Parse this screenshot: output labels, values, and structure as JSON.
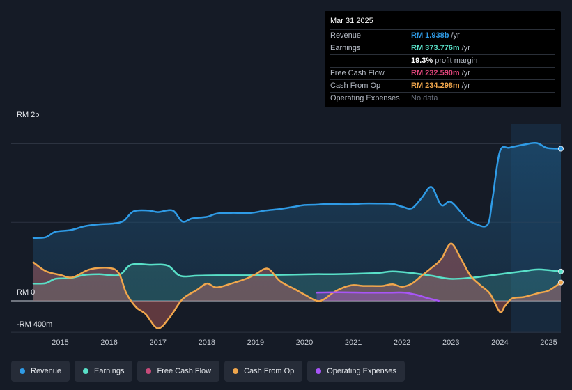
{
  "tooltip": {
    "date": "Mar 31 2025",
    "rows": [
      {
        "label": "Revenue",
        "value": "RM 1.938b",
        "unit": "/yr",
        "color": "#2f9be6"
      },
      {
        "label": "Earnings",
        "value": "RM 373.776m",
        "unit": "/yr",
        "color": "#59e0c8"
      },
      {
        "label": "",
        "value": "19.3%",
        "unit": "profit margin",
        "color": "#ffffff"
      },
      {
        "label": "Free Cash Flow",
        "value": "RM 232.590m",
        "unit": "/yr",
        "color": "#e0457b"
      },
      {
        "label": "Cash From Op",
        "value": "RM 234.298m",
        "unit": "/yr",
        "color": "#f0a64c"
      },
      {
        "label": "Operating Expenses",
        "value": "No data",
        "unit": "",
        "color": "#6b7280"
      }
    ]
  },
  "legend": [
    {
      "label": "Revenue",
      "color": "#2f9be6"
    },
    {
      "label": "Earnings",
      "color": "#59e0c8"
    },
    {
      "label": "Free Cash Flow",
      "color": "#c84b7a"
    },
    {
      "label": "Cash From Op",
      "color": "#f0a64c"
    },
    {
      "label": "Operating Expenses",
      "color": "#a855f7"
    }
  ],
  "chart_data": {
    "type": "line",
    "y_axis_labels": {
      "top": "RM 2b",
      "zero": "RM 0",
      "bottom": "-RM 400m"
    },
    "ylim": [
      -400,
      2200
    ],
    "xlim": [
      2014.45,
      2025.25
    ],
    "x_ticks": [
      "2015",
      "2016",
      "2017",
      "2018",
      "2019",
      "2020",
      "2021",
      "2022",
      "2023",
      "2024",
      "2025"
    ],
    "series": [
      {
        "name": "Revenue",
        "unit": "RM m",
        "color": "#2f9be6",
        "x": [
          2014.45,
          2014.7,
          2014.9,
          2015.2,
          2015.5,
          2015.8,
          2016.1,
          2016.3,
          2016.5,
          2016.8,
          2017.0,
          2017.3,
          2017.5,
          2017.7,
          2018.0,
          2018.2,
          2018.5,
          2018.9,
          2019.2,
          2019.5,
          2019.8,
          2020.0,
          2020.25,
          2020.5,
          2020.7,
          2021.0,
          2021.2,
          2021.5,
          2021.8,
          2022.0,
          2022.2,
          2022.4,
          2022.6,
          2022.8,
          2023.0,
          2023.3,
          2023.5,
          2023.75,
          2023.85,
          2024.0,
          2024.2,
          2024.5,
          2024.75,
          2024.95,
          2025.1,
          2025.25
        ],
        "values": [
          800,
          810,
          880,
          900,
          950,
          975,
          985,
          1020,
          1140,
          1150,
          1130,
          1150,
          1010,
          1050,
          1070,
          1110,
          1120,
          1120,
          1150,
          1170,
          1200,
          1220,
          1225,
          1235,
          1230,
          1230,
          1240,
          1240,
          1235,
          1200,
          1180,
          1310,
          1450,
          1220,
          1260,
          1060,
          980,
          970,
          1300,
          1900,
          1950,
          1990,
          2010,
          1950,
          1940,
          1938
        ]
      },
      {
        "name": "Earnings",
        "unit": "RM m",
        "color": "#59e0c8",
        "x": [
          2014.45,
          2014.7,
          2014.9,
          2015.2,
          2015.5,
          2015.8,
          2016.2,
          2016.45,
          2016.85,
          2017.2,
          2017.45,
          2017.8,
          2018.2,
          2018.8,
          2019.3,
          2019.8,
          2020.2,
          2020.6,
          2021.0,
          2021.5,
          2021.8,
          2022.2,
          2022.6,
          2023.0,
          2023.5,
          2024.0,
          2024.5,
          2024.8,
          2025.25
        ],
        "values": [
          220,
          225,
          280,
          290,
          330,
          340,
          330,
          460,
          460,
          450,
          320,
          320,
          325,
          325,
          330,
          335,
          340,
          340,
          345,
          355,
          375,
          355,
          320,
          280,
          300,
          340,
          380,
          400,
          374
        ]
      },
      {
        "name": "Free Cash Flow",
        "unit": "RM m",
        "color": "#c84b7a",
        "x": [
          2014.45,
          2014.7,
          2015.0,
          2015.25,
          2015.6,
          2016.0,
          2016.2,
          2016.35,
          2016.55,
          2016.75,
          2017.0,
          2017.25,
          2017.5,
          2017.8,
          2018.0,
          2018.2,
          2018.5,
          2018.8,
          2019.0,
          2019.25,
          2019.5,
          2019.8,
          2020.0,
          2020.25,
          2020.4,
          2020.6,
          2020.8,
          2021.0,
          2021.2,
          2021.4,
          2021.6,
          2021.8,
          2022.0,
          2022.2,
          2022.4,
          2022.6,
          2022.8,
          2023.0,
          2023.2,
          2023.4,
          2023.6,
          2023.8,
          2024.0,
          2024.1,
          2024.25,
          2024.5,
          2024.8,
          2025.0,
          2025.25
        ],
        "values": [
          490,
          380,
          330,
          300,
          400,
          420,
          350,
          100,
          -80,
          -170,
          -350,
          -200,
          20,
          140,
          220,
          170,
          220,
          280,
          340,
          410,
          250,
          150,
          80,
          0,
          20,
          110,
          170,
          200,
          190,
          190,
          190,
          210,
          180,
          220,
          320,
          420,
          530,
          730,
          540,
          320,
          200,
          90,
          -140,
          -70,
          30,
          50,
          100,
          130,
          233
        ]
      },
      {
        "name": "Cash From Op",
        "unit": "RM m",
        "color": "#f0a64c",
        "x": [
          2014.45,
          2014.7,
          2015.0,
          2015.25,
          2015.6,
          2016.0,
          2016.2,
          2016.35,
          2016.55,
          2016.75,
          2017.0,
          2017.25,
          2017.5,
          2017.8,
          2018.0,
          2018.2,
          2018.5,
          2018.8,
          2019.0,
          2019.25,
          2019.5,
          2019.8,
          2020.0,
          2020.25,
          2020.4,
          2020.6,
          2020.8,
          2021.0,
          2021.2,
          2021.4,
          2021.6,
          2021.8,
          2022.0,
          2022.2,
          2022.4,
          2022.6,
          2022.8,
          2023.0,
          2023.2,
          2023.4,
          2023.6,
          2023.8,
          2024.0,
          2024.1,
          2024.25,
          2024.5,
          2024.8,
          2025.0,
          2025.25
        ],
        "values": [
          490,
          380,
          330,
          300,
          400,
          420,
          350,
          100,
          -80,
          -170,
          -350,
          -200,
          20,
          140,
          220,
          170,
          220,
          280,
          340,
          410,
          250,
          150,
          80,
          0,
          20,
          110,
          170,
          200,
          190,
          190,
          190,
          210,
          180,
          220,
          320,
          420,
          530,
          730,
          540,
          320,
          200,
          90,
          -140,
          -70,
          30,
          50,
          100,
          130,
          234
        ]
      },
      {
        "name": "Operating Expenses",
        "unit": "RM m",
        "color": "#a855f7",
        "x": [
          2020.25,
          2020.7,
          2021.2,
          2021.8,
          2022.05,
          2022.3,
          2022.55,
          2022.75
        ],
        "values": [
          105,
          108,
          105,
          105,
          105,
          75,
          30,
          0
        ]
      }
    ]
  }
}
